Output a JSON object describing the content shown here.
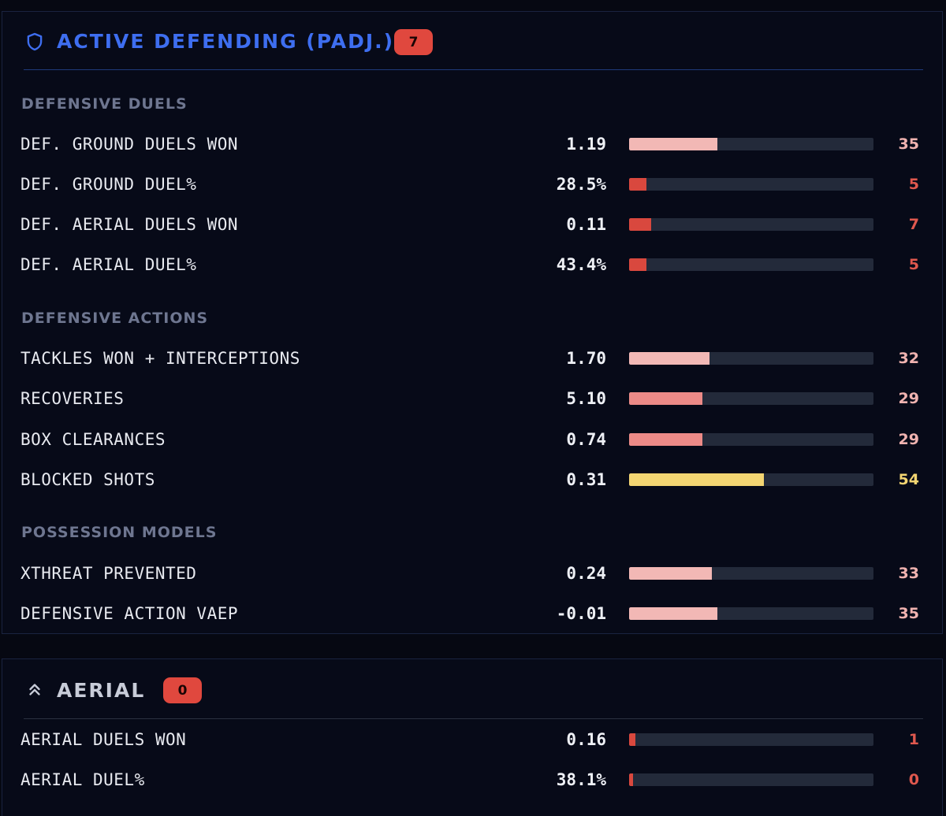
{
  "colors": {
    "accent_blue": "#3e6ef0",
    "badge_red": "#e0483e",
    "bar_light_pink": "#f2b8b5",
    "bar_mid_pink": "#ec8a87",
    "bar_red": "#d9483e",
    "bar_yellow": "#f3d572",
    "text_light_pink": "#f0b3b0",
    "text_red": "#e0584e",
    "text_yellow": "#f3d572"
  },
  "active_defending": {
    "title": "ACTIVE DEFENDING (PADJ.)",
    "badge": "7",
    "icon": "shield-icon",
    "sections": [
      {
        "label": "DEFENSIVE DUELS",
        "metrics": [
          {
            "name": "DEF. GROUND DUELS WON",
            "value": "1.19",
            "percentile": "35",
            "fill": 0.36,
            "tier": "light"
          },
          {
            "name": "DEF. GROUND DUEL%",
            "value": "28.5%",
            "percentile": "5",
            "fill": 0.07,
            "tier": "red"
          },
          {
            "name": "DEF. AERIAL DUELS WON",
            "value": "0.11",
            "percentile": "7",
            "fill": 0.09,
            "tier": "red"
          },
          {
            "name": "DEF. AERIAL DUEL%",
            "value": "43.4%",
            "percentile": "5",
            "fill": 0.07,
            "tier": "red"
          }
        ]
      },
      {
        "label": "DEFENSIVE ACTIONS",
        "metrics": [
          {
            "name": "TACKLES WON + INTERCEPTIONS",
            "value": "1.70",
            "percentile": "32",
            "fill": 0.33,
            "tier": "light"
          },
          {
            "name": "RECOVERIES",
            "value": "5.10",
            "percentile": "29",
            "fill": 0.3,
            "tier": "mid"
          },
          {
            "name": "BOX CLEARANCES",
            "value": "0.74",
            "percentile": "29",
            "fill": 0.3,
            "tier": "mid"
          },
          {
            "name": "BLOCKED SHOTS",
            "value": "0.31",
            "percentile": "54",
            "fill": 0.55,
            "tier": "yellow"
          }
        ]
      },
      {
        "label": "POSSESSION MODELS",
        "metrics": [
          {
            "name": "XTHREAT PREVENTED",
            "value": "0.24",
            "percentile": "33",
            "fill": 0.34,
            "tier": "light"
          },
          {
            "name": "DEFENSIVE ACTION VAEP",
            "value": "-0.01",
            "percentile": "35",
            "fill": 0.36,
            "tier": "light"
          }
        ]
      }
    ]
  },
  "aerial": {
    "title": "AERIAL",
    "badge": "0",
    "icon": "chevrons-up-icon",
    "metrics": [
      {
        "name": "AERIAL DUELS WON",
        "value": "0.16",
        "percentile": "1",
        "fill": 0.025,
        "tier": "red"
      },
      {
        "name": "AERIAL DUEL%",
        "value": "38.1%",
        "percentile": "0",
        "fill": 0.015,
        "tier": "red"
      }
    ]
  }
}
